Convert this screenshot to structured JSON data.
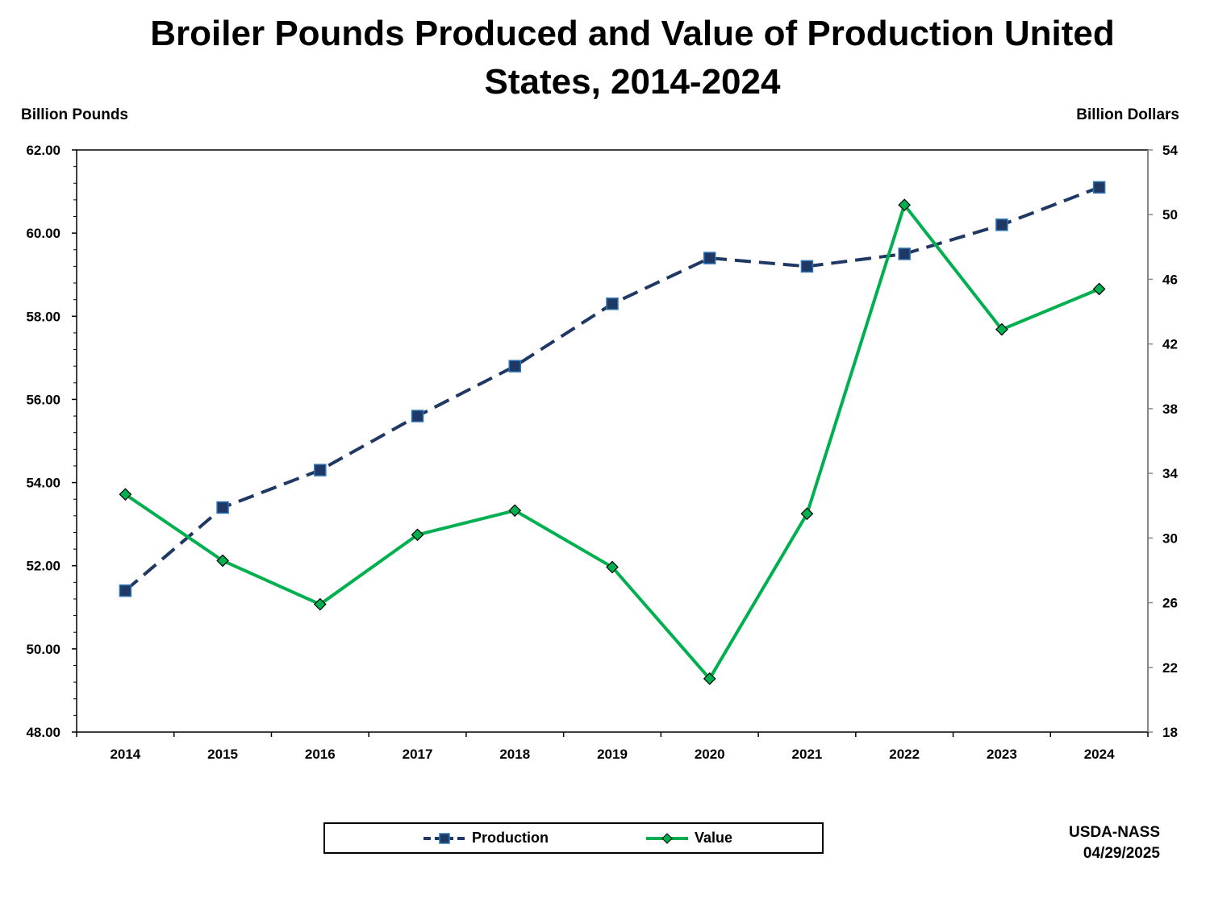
{
  "title_lines": [
    "Broiler Pounds Produced and Value of Production United",
    "States, 2014-2024"
  ],
  "chart_data": {
    "type": "line",
    "title": "Broiler Pounds Produced and Value of Production United States, 2014-2024",
    "ylabel_left": "Billion Pounds",
    "ylabel_right": "Billion Dollars",
    "categories": [
      "2014",
      "2015",
      "2016",
      "2017",
      "2018",
      "2019",
      "2020",
      "2021",
      "2022",
      "2023",
      "2024"
    ],
    "ylim_left": [
      48,
      62
    ],
    "ylim_right": [
      18,
      54
    ],
    "yticks_left": [
      "48.00",
      "50.00",
      "52.00",
      "54.00",
      "56.00",
      "58.00",
      "60.00",
      "62.00"
    ],
    "yticks_right": [
      "18",
      "22",
      "26",
      "30",
      "34",
      "38",
      "42",
      "46",
      "50",
      "54"
    ],
    "series": [
      {
        "name": "Production",
        "axis": "left",
        "color": "#1f3864",
        "style": "dashed",
        "marker": "square",
        "values": [
          51.4,
          53.4,
          54.3,
          55.6,
          56.8,
          58.3,
          59.4,
          59.2,
          59.5,
          60.2,
          61.1
        ]
      },
      {
        "name": "Value",
        "axis": "right",
        "color": "#00b050",
        "style": "solid",
        "marker": "diamond",
        "values": [
          32.7,
          28.6,
          25.9,
          30.2,
          31.7,
          28.2,
          21.3,
          31.5,
          50.6,
          42.9,
          45.4
        ]
      }
    ],
    "grid": false,
    "legend_position": "bottom"
  },
  "source": {
    "org": "USDA-NASS",
    "date": "04/29/2025"
  }
}
